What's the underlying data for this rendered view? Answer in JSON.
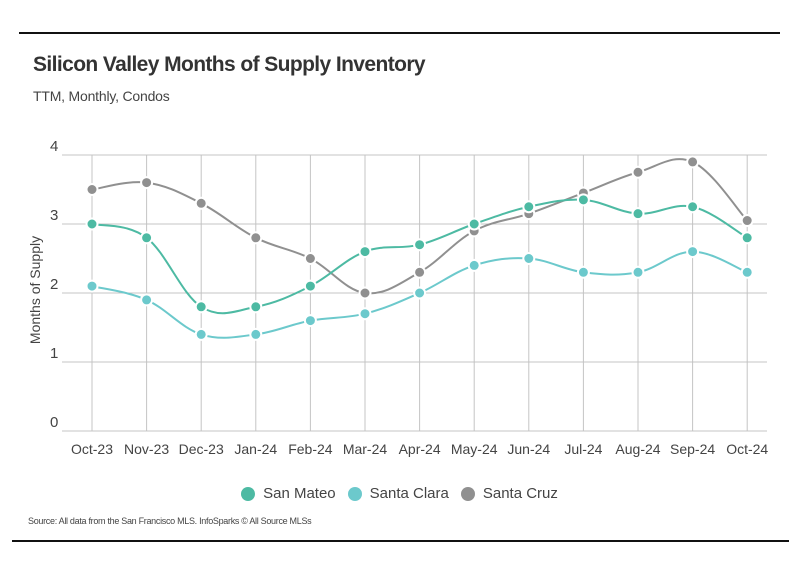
{
  "header": {
    "title": "Silicon Valley Months of Supply Inventory",
    "subtitle": "TTM, Monthly, Condos"
  },
  "footer": {
    "source": "Source:  All data from the San Francisco MLS. InfoSparks © All Source MLSs"
  },
  "chart_data": {
    "type": "line",
    "title": "Silicon Valley Months of Supply Inventory",
    "subtitle": "TTM, Monthly, Condos",
    "xlabel": "",
    "ylabel": "Months of Supply",
    "ylim": [
      0,
      4
    ],
    "yticks": [
      "0",
      "1",
      "2",
      "3",
      "4"
    ],
    "grid": true,
    "legend_position": "bottom",
    "categories": [
      "Oct-23",
      "Nov-23",
      "Dec-23",
      "Jan-24",
      "Feb-24",
      "Mar-24",
      "Apr-24",
      "May-24",
      "Jun-24",
      "Jul-24",
      "Aug-24",
      "Sep-24",
      "Oct-24"
    ],
    "series": [
      {
        "name": "San Mateo",
        "color": "#4dbaa3",
        "values": [
          3.0,
          2.8,
          1.8,
          1.8,
          2.1,
          2.6,
          2.7,
          3.0,
          3.25,
          3.35,
          3.15,
          3.25,
          2.8
        ]
      },
      {
        "name": "Santa Clara",
        "color": "#6cc9cc",
        "values": [
          2.1,
          1.9,
          1.4,
          1.4,
          1.6,
          1.7,
          2.0,
          2.4,
          2.5,
          2.3,
          2.3,
          2.6,
          2.3
        ]
      },
      {
        "name": "Santa Cruz",
        "color": "#909090",
        "values": [
          3.5,
          3.6,
          3.3,
          2.8,
          2.5,
          2.0,
          2.3,
          2.9,
          3.15,
          3.45,
          3.75,
          3.9,
          3.05
        ]
      }
    ]
  }
}
